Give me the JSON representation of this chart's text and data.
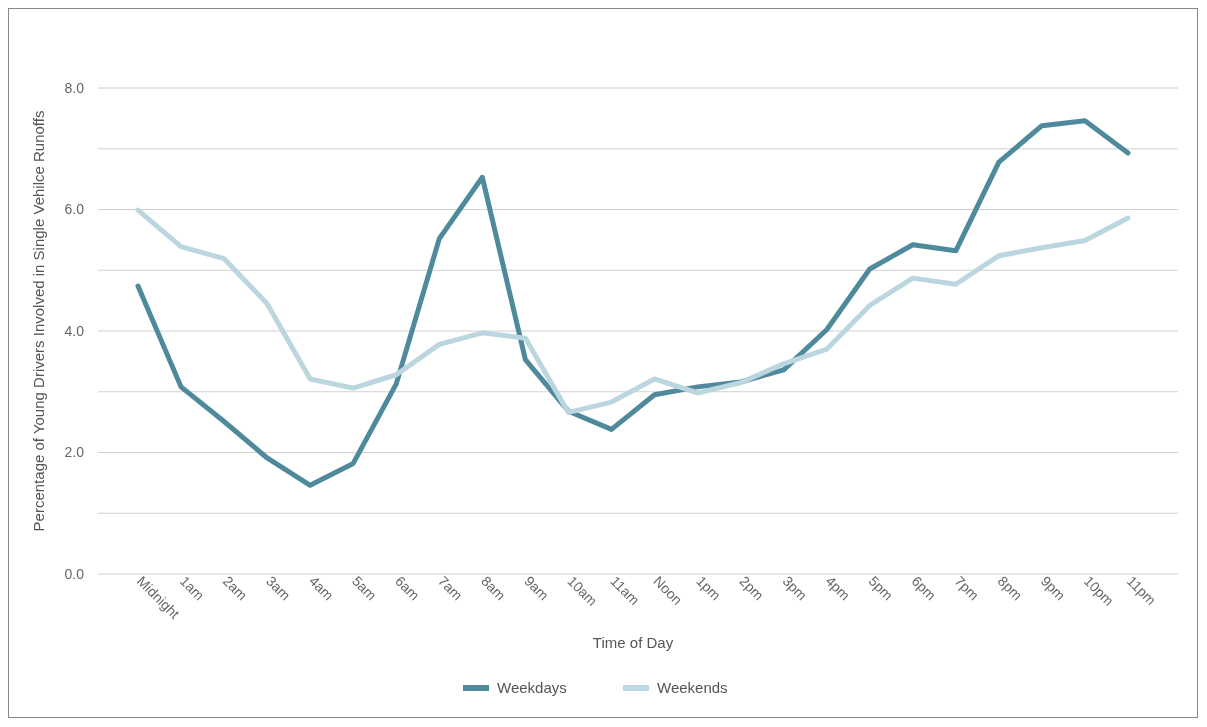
{
  "chart_data": {
    "type": "line",
    "xlabel": "Time of Day",
    "ylabel": "Percentage of Young Drivers Involved in Single Vehilce Runoffs",
    "categories": [
      "Midnight",
      "1am",
      "2am",
      "3am",
      "4am",
      "5am",
      "6am",
      "7am",
      "8am",
      "9am",
      "10am",
      "11am",
      "Noon",
      "1pm",
      "2pm",
      "3pm",
      "4pm",
      "5pm",
      "6pm",
      "7pm",
      "8pm",
      "9pm",
      "10pm",
      "11pm"
    ],
    "series": [
      {
        "name": "Weekdays",
        "color": "#4e8a9b",
        "values": [
          4.74,
          3.08,
          2.51,
          1.91,
          1.46,
          1.82,
          3.13,
          5.52,
          6.53,
          3.53,
          2.68,
          2.38,
          2.95,
          3.08,
          3.16,
          3.36,
          4.02,
          5.02,
          5.42,
          5.32,
          6.78,
          7.38,
          7.46,
          6.93
        ]
      },
      {
        "name": "Weekends",
        "color": "#bcd6e0",
        "values": [
          5.99,
          5.39,
          5.19,
          4.45,
          3.21,
          3.06,
          3.28,
          3.78,
          3.97,
          3.88,
          2.66,
          2.83,
          3.21,
          2.98,
          3.15,
          3.46,
          3.7,
          4.42,
          4.87,
          4.77,
          5.24,
          5.37,
          5.49,
          5.86
        ]
      }
    ],
    "ylim": [
      0,
      8
    ],
    "yticks": [
      {
        "value": 0,
        "label": "0.0"
      },
      {
        "value": 1,
        "label": null
      },
      {
        "value": 2,
        "label": "2.0"
      },
      {
        "value": 3,
        "label": null
      },
      {
        "value": 4,
        "label": "4.0"
      },
      {
        "value": 5,
        "label": null
      },
      {
        "value": 6,
        "label": "6.0"
      },
      {
        "value": 7,
        "label": null
      },
      {
        "value": 8,
        "label": "8.0"
      }
    ],
    "grid": "y",
    "legend": "bottom",
    "marker": "none",
    "line_style": "solid"
  }
}
